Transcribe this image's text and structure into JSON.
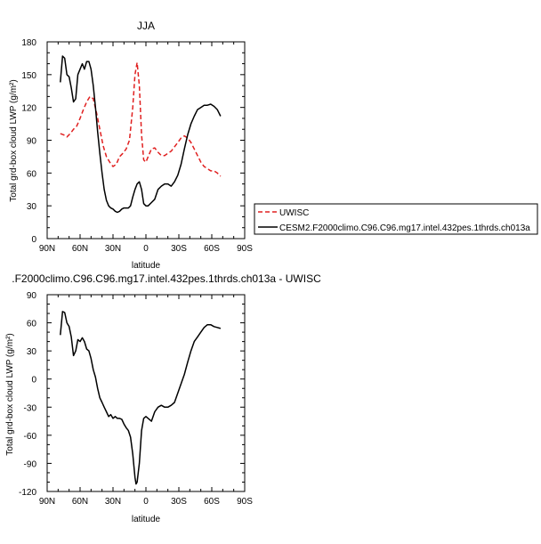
{
  "colors": {
    "uwisc": "#e02020",
    "cesm": "#000000",
    "axis": "#000000"
  },
  "chart_data": [
    {
      "type": "line",
      "title": "JJA",
      "xlabel": "latitude",
      "ylabel": "Total grd-box cloud LWP (g/m²)",
      "xticks": [
        "90N",
        "60N",
        "30N",
        "0",
        "30S",
        "60S",
        "90S"
      ],
      "xlim": [
        90,
        -90
      ],
      "ylim": [
        0,
        180
      ],
      "yticks": [
        0,
        30,
        60,
        90,
        120,
        150,
        180
      ],
      "legend": {
        "placement": "right",
        "entries": [
          "UWISC",
          "CESM2.F2000climo.C96.C96.mg17.intel.432pes.1thrds.ch013a"
        ]
      },
      "series": [
        {
          "name": "UWISC",
          "style": "dashed",
          "color": "#e02020",
          "x": [
            78,
            75,
            72,
            69,
            66,
            63,
            60,
            57,
            54,
            51,
            48,
            45,
            42,
            39,
            36,
            33,
            30,
            27,
            24,
            21,
            18,
            15,
            12,
            10,
            8,
            6,
            4,
            2,
            0,
            -2,
            -5,
            -8,
            -11,
            -14,
            -17,
            -20,
            -23,
            -26,
            -29,
            -32,
            -35,
            -38,
            -41,
            -44,
            -47,
            -50,
            -53,
            -56,
            -59,
            -62,
            -65,
            -68
          ],
          "values": [
            96,
            95,
            93,
            96,
            100,
            103,
            110,
            118,
            125,
            130,
            128,
            115,
            100,
            85,
            75,
            70,
            66,
            68,
            75,
            78,
            82,
            90,
            120,
            150,
            161,
            140,
            95,
            72,
            70,
            75,
            82,
            83,
            79,
            76,
            76,
            78,
            80,
            84,
            88,
            92,
            94,
            92,
            88,
            82,
            76,
            70,
            66,
            64,
            62,
            62,
            60,
            57
          ]
        },
        {
          "name": "CESM2.F2000climo.C96.C96.mg17.intel.432pes.1thrds.ch013a",
          "style": "solid",
          "color": "#000000",
          "x": [
            78,
            76,
            74,
            72,
            70,
            68,
            66,
            64,
            62,
            60,
            58,
            56,
            54,
            52,
            50,
            48,
            46,
            44,
            42,
            40,
            38,
            36,
            34,
            32,
            30,
            28,
            26,
            24,
            22,
            20,
            18,
            16,
            14,
            12,
            10,
            8,
            6,
            4,
            2,
            0,
            -2,
            -5,
            -8,
            -11,
            -14,
            -17,
            -20,
            -23,
            -26,
            -29,
            -32,
            -35,
            -38,
            -41,
            -44,
            -47,
            -50,
            -53,
            -56,
            -59,
            -62,
            -65,
            -68
          ],
          "values": [
            143,
            167,
            165,
            150,
            148,
            138,
            125,
            128,
            150,
            155,
            160,
            155,
            162,
            162,
            155,
            140,
            120,
            98,
            78,
            60,
            45,
            35,
            30,
            28,
            27,
            25,
            24,
            25,
            27,
            28,
            28,
            28,
            30,
            38,
            45,
            50,
            52,
            45,
            32,
            30,
            30,
            33,
            36,
            45,
            48,
            50,
            50,
            48,
            52,
            58,
            68,
            82,
            95,
            105,
            112,
            118,
            120,
            122,
            122,
            123,
            121,
            118,
            112
          ]
        }
      ]
    },
    {
      "type": "line",
      "title": ".F2000climo.C96.C96.mg17.intel.432pes.1thrds.ch013a - UWISC",
      "xlabel": "latitude",
      "ylabel": "Total grd-box cloud LWP (g/m²)",
      "xticks": [
        "90N",
        "60N",
        "30N",
        "0",
        "30S",
        "60S",
        "90S"
      ],
      "xlim": [
        90,
        -90
      ],
      "ylim": [
        -120,
        90
      ],
      "yticks": [
        -120,
        -90,
        -60,
        -30,
        0,
        30,
        60,
        90
      ],
      "series": [
        {
          "style": "solid",
          "color": "#000000",
          "x": [
            78,
            76,
            74,
            72,
            70,
            68,
            66,
            64,
            62,
            60,
            58,
            56,
            54,
            52,
            50,
            48,
            46,
            44,
            42,
            40,
            38,
            36,
            34,
            32,
            30,
            28,
            26,
            24,
            22,
            20,
            18,
            16,
            14,
            12,
            10,
            9,
            8,
            6,
            4,
            2,
            0,
            -2,
            -5,
            -8,
            -11,
            -14,
            -17,
            -20,
            -23,
            -26,
            -29,
            -32,
            -35,
            -38,
            -41,
            -44,
            -47,
            -50,
            -53,
            -56,
            -59,
            -62,
            -65,
            -68
          ],
          "values": [
            47,
            72,
            71,
            60,
            56,
            45,
            25,
            30,
            42,
            40,
            44,
            40,
            32,
            30,
            22,
            10,
            2,
            -10,
            -20,
            -25,
            -30,
            -35,
            -40,
            -38,
            -42,
            -40,
            -42,
            -42,
            -43,
            -48,
            -52,
            -55,
            -62,
            -80,
            -105,
            -112,
            -110,
            -90,
            -55,
            -42,
            -40,
            -42,
            -45,
            -35,
            -30,
            -28,
            -30,
            -30,
            -28,
            -25,
            -15,
            -5,
            5,
            18,
            30,
            40,
            45,
            50,
            55,
            58,
            58,
            56,
            55,
            54
          ]
        }
      ]
    }
  ]
}
